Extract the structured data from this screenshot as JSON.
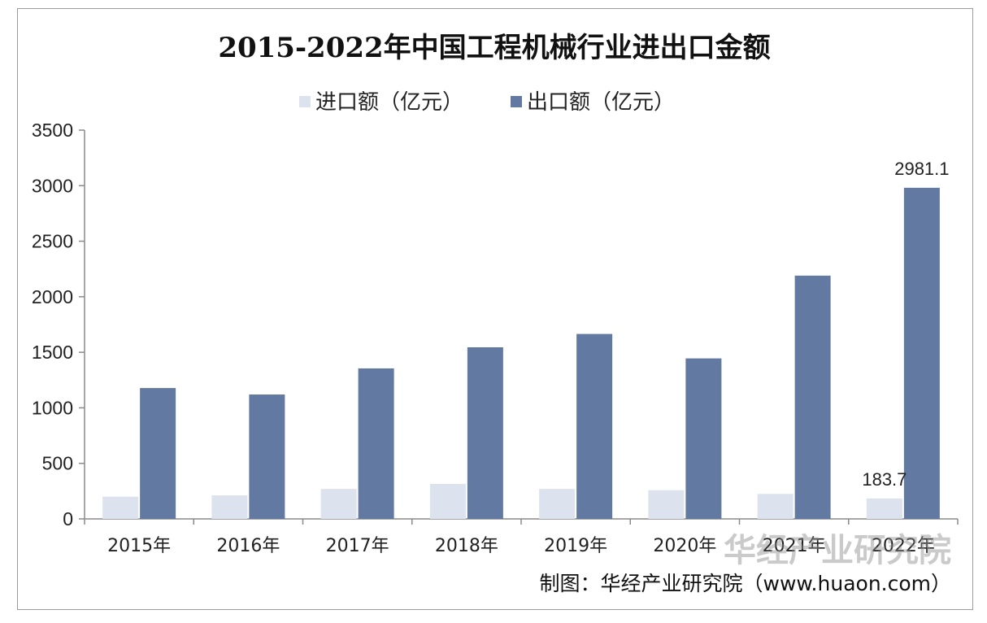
{
  "chart_data": {
    "type": "bar",
    "title": "2015-2022年中国工程机械行业进出口金额",
    "categories": [
      "2015年",
      "2016年",
      "2017年",
      "2018年",
      "2019年",
      "2020年",
      "2021年",
      "2022年"
    ],
    "series": [
      {
        "name": "进口额（亿元）",
        "color": "#dde3ee",
        "values": [
          200,
          212,
          270,
          315,
          270,
          258,
          225,
          183.7
        ]
      },
      {
        "name": "出口额（亿元）",
        "color": "#627aa1",
        "values": [
          1178,
          1120,
          1355,
          1545,
          1665,
          1445,
          2190,
          2981.1
        ]
      }
    ],
    "data_labels": [
      {
        "series": 0,
        "index": 7,
        "text": "183.7"
      },
      {
        "series": 1,
        "index": 7,
        "text": "2981.1"
      }
    ],
    "ylim": [
      0,
      3500
    ],
    "yticks": [
      0,
      500,
      1000,
      1500,
      2000,
      2500,
      3000,
      3500
    ],
    "grid": false,
    "legend": "top-center"
  },
  "source_note": "制图：华经产业研究院（www.huaon.com）",
  "watermark": "华经产业研究院"
}
